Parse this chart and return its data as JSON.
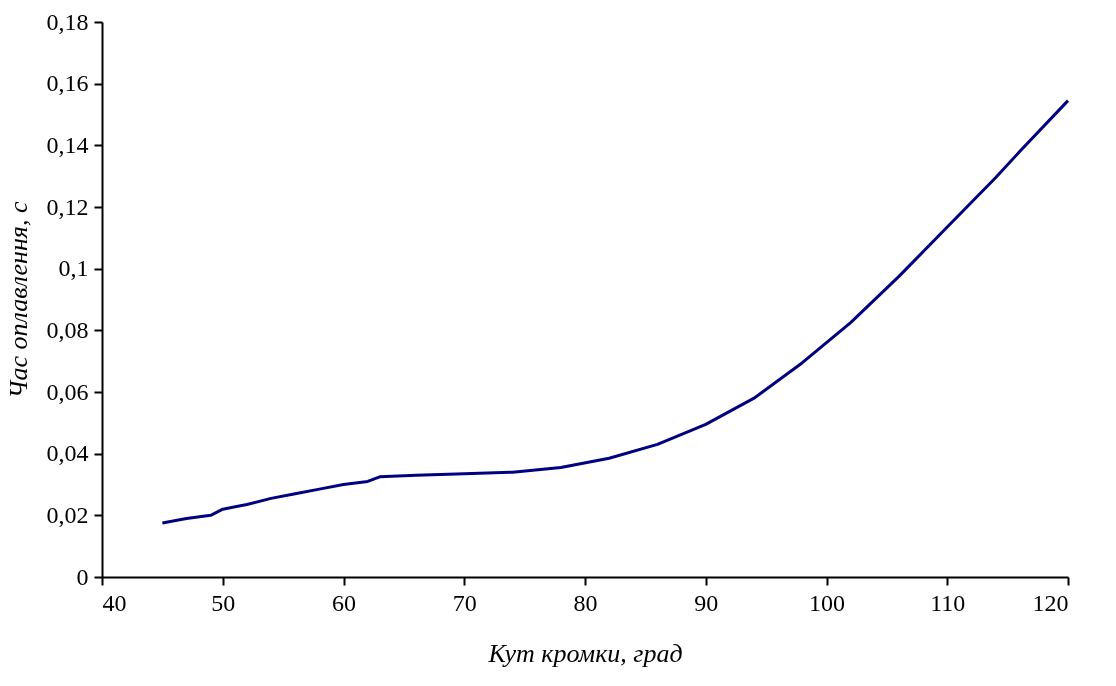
{
  "chart_data": {
    "type": "line",
    "xlabel": "Кут кромки, град",
    "ylabel": "Час оплавлення, с",
    "x": [
      45,
      47,
      49,
      50,
      52,
      54,
      56,
      58,
      60,
      62,
      63,
      66,
      70,
      74,
      78,
      82,
      86,
      90,
      94,
      98,
      102,
      106,
      110,
      114,
      116,
      120
    ],
    "series": [
      {
        "color": "#000080",
        "values": [
          0.0175,
          0.019,
          0.02,
          0.022,
          0.0235,
          0.0255,
          0.027,
          0.0285,
          0.03,
          0.031,
          0.0325,
          0.033,
          0.0335,
          0.034,
          0.0355,
          0.0385,
          0.043,
          0.0495,
          0.058,
          0.0695,
          0.0825,
          0.0975,
          0.1135,
          0.1295,
          0.138,
          0.1545
        ]
      }
    ],
    "xlim": [
      40,
      120
    ],
    "xticks": [
      40,
      50,
      60,
      70,
      80,
      90,
      100,
      110,
      120
    ],
    "ylim": [
      0,
      0.18
    ],
    "yticks": [
      0,
      {
        "value": 0.02,
        "label": "0,02"
      },
      {
        "value": 0.04,
        "label": "0,04"
      },
      {
        "value": 0.06,
        "label": "0,06"
      },
      {
        "value": 0.08,
        "label": "0,08"
      },
      {
        "value": 0.1,
        "label": "0,1"
      },
      {
        "value": 0.12,
        "label": "0,12"
      },
      {
        "value": 0.14,
        "label": "0,14"
      },
      {
        "value": 0.16,
        "label": "0,16"
      },
      {
        "value": 0.18,
        "label": "0,18"
      }
    ],
    "grid": false,
    "legend": false,
    "marker": "none",
    "line_style": "solid"
  }
}
